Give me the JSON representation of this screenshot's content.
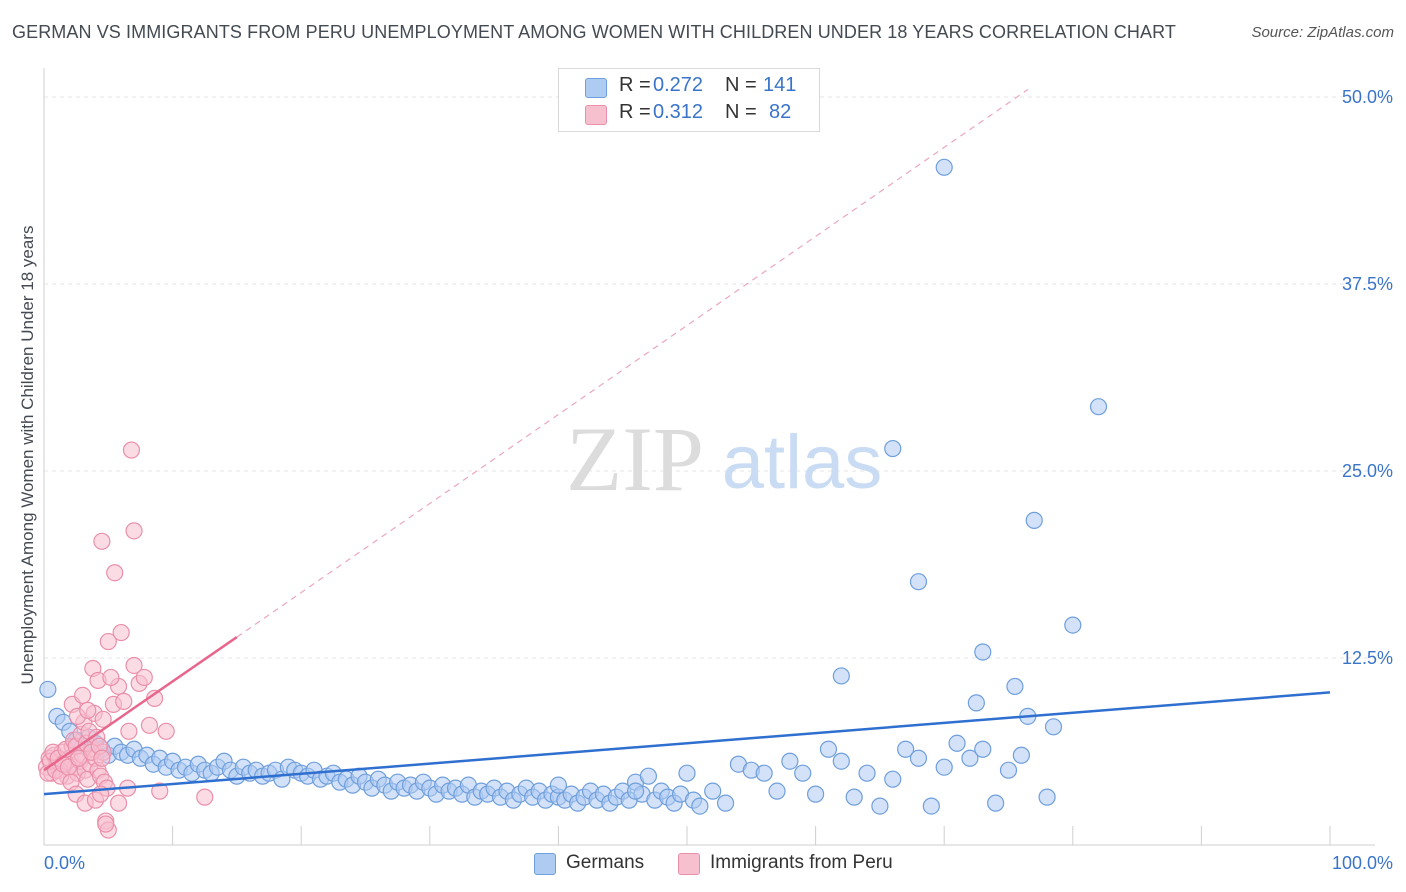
{
  "title": "GERMAN VS IMMIGRANTS FROM PERU UNEMPLOYMENT AMONG WOMEN WITH CHILDREN UNDER 18 YEARS CORRELATION CHART",
  "source": "Source: ZipAtlas.com",
  "watermark": {
    "zip": "ZIP",
    "atlas": "atlas"
  },
  "legend_top": {
    "rows": [
      {
        "r_label": "R =",
        "r_value": "0.272",
        "n_label": "N =",
        "n_value": "141"
      },
      {
        "r_label": "R =",
        "r_value": "0.312",
        "n_label": "N =",
        "n_value": "82"
      }
    ]
  },
  "legend_bottom": {
    "germans": "Germans",
    "peru": "Immigrants from Peru"
  },
  "colors": {
    "germans_fill": "#aecbf2",
    "germans_stroke": "#6f9fdc",
    "germans_line": "#2f6fcf",
    "peru_fill": "#f7c0cf",
    "peru_stroke": "#ea8fa9",
    "peru_line": "#e8668c",
    "tick_text": "#3a74c9",
    "grid": "#e6e6e6"
  },
  "chart_data": {
    "type": "scatter",
    "title": "GERMAN VS IMMIGRANTS FROM PERU UNEMPLOYMENT AMONG WOMEN WITH CHILDREN UNDER 18 YEARS CORRELATION CHART",
    "xlabel": "",
    "ylabel": "Unemployment Among Women with Children Under 18 years",
    "xlim": [
      0,
      100
    ],
    "ylim": [
      0,
      50
    ],
    "x_tick_labels": [
      "0.0%",
      "100.0%"
    ],
    "y_ticks": [
      12.5,
      25.0,
      37.5,
      50.0
    ],
    "y_tick_labels": [
      "12.5%",
      "25.0%",
      "37.5%",
      "50.0%"
    ],
    "grid": true,
    "series": [
      {
        "name": "Germans",
        "R": 0.272,
        "N": 141,
        "trend": {
          "x0": 0,
          "y0": 3.4,
          "x1": 100,
          "y1": 10.2
        },
        "points": [
          [
            0.3,
            10.4
          ],
          [
            1.0,
            8.6
          ],
          [
            1.5,
            8.2
          ],
          [
            2.0,
            7.6
          ],
          [
            2.5,
            7.0
          ],
          [
            3.0,
            6.6
          ],
          [
            3.5,
            7.2
          ],
          [
            4.0,
            6.8
          ],
          [
            4.5,
            6.4
          ],
          [
            5.0,
            6.0
          ],
          [
            5.5,
            6.6
          ],
          [
            6.0,
            6.2
          ],
          [
            6.5,
            6.0
          ],
          [
            7.0,
            6.4
          ],
          [
            7.5,
            5.8
          ],
          [
            8.0,
            6.0
          ],
          [
            8.5,
            5.4
          ],
          [
            9.0,
            5.8
          ],
          [
            9.5,
            5.2
          ],
          [
            10.0,
            5.6
          ],
          [
            10.5,
            5.0
          ],
          [
            11.0,
            5.2
          ],
          [
            11.5,
            4.8
          ],
          [
            12.0,
            5.4
          ],
          [
            12.5,
            5.0
          ],
          [
            13.0,
            4.8
          ],
          [
            13.5,
            5.2
          ],
          [
            14.0,
            5.6
          ],
          [
            14.5,
            5.0
          ],
          [
            15.0,
            4.6
          ],
          [
            15.5,
            5.2
          ],
          [
            16.0,
            4.8
          ],
          [
            16.5,
            5.0
          ],
          [
            17.0,
            4.6
          ],
          [
            17.5,
            4.8
          ],
          [
            18.0,
            5.0
          ],
          [
            18.5,
            4.4
          ],
          [
            19.0,
            5.2
          ],
          [
            19.5,
            5.0
          ],
          [
            20.0,
            4.8
          ],
          [
            20.5,
            4.6
          ],
          [
            21.0,
            5.0
          ],
          [
            21.5,
            4.4
          ],
          [
            22.0,
            4.6
          ],
          [
            22.5,
            4.8
          ],
          [
            23.0,
            4.2
          ],
          [
            23.5,
            4.4
          ],
          [
            24.0,
            4.0
          ],
          [
            24.5,
            4.6
          ],
          [
            25.0,
            4.2
          ],
          [
            25.5,
            3.8
          ],
          [
            26.0,
            4.4
          ],
          [
            26.5,
            4.0
          ],
          [
            27.0,
            3.6
          ],
          [
            27.5,
            4.2
          ],
          [
            28.0,
            3.8
          ],
          [
            28.5,
            4.0
          ],
          [
            29.0,
            3.6
          ],
          [
            29.5,
            4.2
          ],
          [
            30.0,
            3.8
          ],
          [
            30.5,
            3.4
          ],
          [
            31.0,
            4.0
          ],
          [
            31.5,
            3.6
          ],
          [
            32.0,
            3.8
          ],
          [
            32.5,
            3.4
          ],
          [
            33.0,
            4.0
          ],
          [
            33.5,
            3.2
          ],
          [
            34.0,
            3.6
          ],
          [
            34.5,
            3.4
          ],
          [
            35.0,
            3.8
          ],
          [
            35.5,
            3.2
          ],
          [
            36.0,
            3.6
          ],
          [
            36.5,
            3.0
          ],
          [
            37.0,
            3.4
          ],
          [
            37.5,
            3.8
          ],
          [
            38.0,
            3.2
          ],
          [
            38.5,
            3.6
          ],
          [
            39.0,
            3.0
          ],
          [
            39.5,
            3.4
          ],
          [
            40.0,
            3.2
          ],
          [
            40.5,
            3.0
          ],
          [
            41.0,
            3.4
          ],
          [
            41.5,
            2.8
          ],
          [
            42.0,
            3.2
          ],
          [
            42.5,
            3.6
          ],
          [
            43.0,
            3.0
          ],
          [
            43.5,
            3.4
          ],
          [
            44.0,
            2.8
          ],
          [
            44.5,
            3.2
          ],
          [
            45.0,
            3.6
          ],
          [
            45.5,
            3.0
          ],
          [
            46.0,
            4.2
          ],
          [
            46.5,
            3.4
          ],
          [
            47.0,
            4.6
          ],
          [
            47.5,
            3.0
          ],
          [
            48.0,
            3.6
          ],
          [
            48.5,
            3.2
          ],
          [
            49.0,
            2.8
          ],
          [
            49.5,
            3.4
          ],
          [
            50.0,
            4.8
          ],
          [
            50.5,
            3.0
          ],
          [
            51.0,
            2.6
          ],
          [
            52.0,
            3.6
          ],
          [
            53.0,
            2.8
          ],
          [
            54.0,
            5.4
          ],
          [
            55.0,
            5.0
          ],
          [
            56.0,
            4.8
          ],
          [
            57.0,
            3.6
          ],
          [
            58.0,
            5.6
          ],
          [
            59.0,
            4.8
          ],
          [
            60.0,
            3.4
          ],
          [
            61.0,
            6.4
          ],
          [
            62.0,
            5.6
          ],
          [
            63.0,
            3.2
          ],
          [
            64.0,
            4.8
          ],
          [
            65.0,
            2.6
          ],
          [
            66.0,
            4.4
          ],
          [
            67.0,
            6.4
          ],
          [
            68.0,
            5.8
          ],
          [
            69.0,
            2.6
          ],
          [
            70.0,
            5.2
          ],
          [
            71.0,
            6.8
          ],
          [
            72.0,
            5.8
          ],
          [
            73.0,
            6.4
          ],
          [
            74.0,
            2.8
          ],
          [
            75.0,
            5.0
          ],
          [
            76.0,
            6.0
          ],
          [
            78.0,
            3.2
          ],
          [
            40.0,
            4.0
          ],
          [
            46.0,
            3.6
          ],
          [
            62.0,
            11.3
          ],
          [
            72.5,
            9.5
          ],
          [
            75.5,
            10.6
          ],
          [
            76.5,
            8.6
          ],
          [
            78.5,
            7.9
          ],
          [
            68.0,
            17.6
          ],
          [
            73.0,
            12.9
          ],
          [
            77.0,
            21.7
          ],
          [
            80.0,
            14.7
          ],
          [
            66.0,
            26.5
          ],
          [
            82.0,
            29.3
          ],
          [
            70.0,
            45.3
          ]
        ]
      },
      {
        "name": "Immigrants from Peru",
        "R": 0.312,
        "N": 82,
        "trend": {
          "x0": 0,
          "y0": 5.0,
          "x1": 15,
          "y1": 13.9
        },
        "trend_extended": {
          "x0": 15,
          "y0": 13.9,
          "x1": 76.5,
          "y1": 50.5
        },
        "points": [
          [
            0.2,
            5.2
          ],
          [
            0.4,
            5.8
          ],
          [
            0.6,
            4.8
          ],
          [
            0.8,
            6.0
          ],
          [
            1.0,
            5.4
          ],
          [
            1.2,
            5.0
          ],
          [
            1.4,
            6.2
          ],
          [
            1.6,
            5.6
          ],
          [
            1.8,
            4.6
          ],
          [
            2.0,
            5.8
          ],
          [
            2.2,
            6.6
          ],
          [
            2.4,
            5.2
          ],
          [
            2.6,
            4.8
          ],
          [
            2.8,
            5.6
          ],
          [
            3.0,
            6.0
          ],
          [
            3.2,
            5.0
          ],
          [
            3.4,
            4.4
          ],
          [
            3.6,
            5.4
          ],
          [
            3.8,
            6.4
          ],
          [
            4.0,
            5.8
          ],
          [
            4.2,
            5.0
          ],
          [
            4.4,
            4.6
          ],
          [
            4.6,
            6.2
          ],
          [
            0.3,
            4.8
          ],
          [
            0.5,
            5.6
          ],
          [
            0.7,
            6.2
          ],
          [
            0.9,
            5.0
          ],
          [
            1.1,
            5.8
          ],
          [
            1.3,
            4.6
          ],
          [
            1.5,
            5.4
          ],
          [
            1.7,
            6.4
          ],
          [
            1.9,
            5.2
          ],
          [
            2.1,
            4.2
          ],
          [
            2.3,
            7.0
          ],
          [
            2.5,
            6.6
          ],
          [
            2.7,
            5.8
          ],
          [
            2.9,
            7.4
          ],
          [
            3.1,
            8.2
          ],
          [
            3.3,
            6.8
          ],
          [
            3.5,
            7.6
          ],
          [
            3.7,
            6.2
          ],
          [
            3.9,
            8.8
          ],
          [
            4.1,
            7.2
          ],
          [
            4.3,
            6.6
          ],
          [
            4.5,
            5.8
          ],
          [
            4.7,
            4.2
          ],
          [
            4.9,
            3.8
          ],
          [
            2.2,
            9.4
          ],
          [
            2.6,
            8.6
          ],
          [
            3.0,
            10.0
          ],
          [
            3.4,
            9.0
          ],
          [
            3.8,
            11.8
          ],
          [
            4.2,
            11.0
          ],
          [
            4.6,
            8.4
          ],
          [
            5.0,
            13.6
          ],
          [
            5.4,
            9.4
          ],
          [
            5.8,
            10.6
          ],
          [
            6.2,
            9.6
          ],
          [
            6.6,
            7.6
          ],
          [
            7.0,
            12.0
          ],
          [
            7.4,
            10.8
          ],
          [
            7.8,
            11.2
          ],
          [
            8.2,
            8.0
          ],
          [
            8.6,
            9.8
          ],
          [
            5.2,
            11.2
          ],
          [
            6.0,
            14.2
          ],
          [
            5.5,
            18.2
          ],
          [
            4.5,
            20.3
          ],
          [
            7.0,
            21.0
          ],
          [
            6.8,
            26.4
          ],
          [
            2.5,
            3.4
          ],
          [
            3.2,
            2.8
          ],
          [
            4.0,
            3.0
          ],
          [
            4.4,
            3.4
          ],
          [
            5.8,
            2.8
          ],
          [
            6.5,
            3.8
          ],
          [
            9.0,
            3.6
          ],
          [
            9.5,
            7.6
          ],
          [
            12.5,
            3.2
          ],
          [
            4.8,
            1.6
          ],
          [
            5.0,
            1.0
          ],
          [
            4.8,
            1.4
          ]
        ]
      }
    ]
  }
}
